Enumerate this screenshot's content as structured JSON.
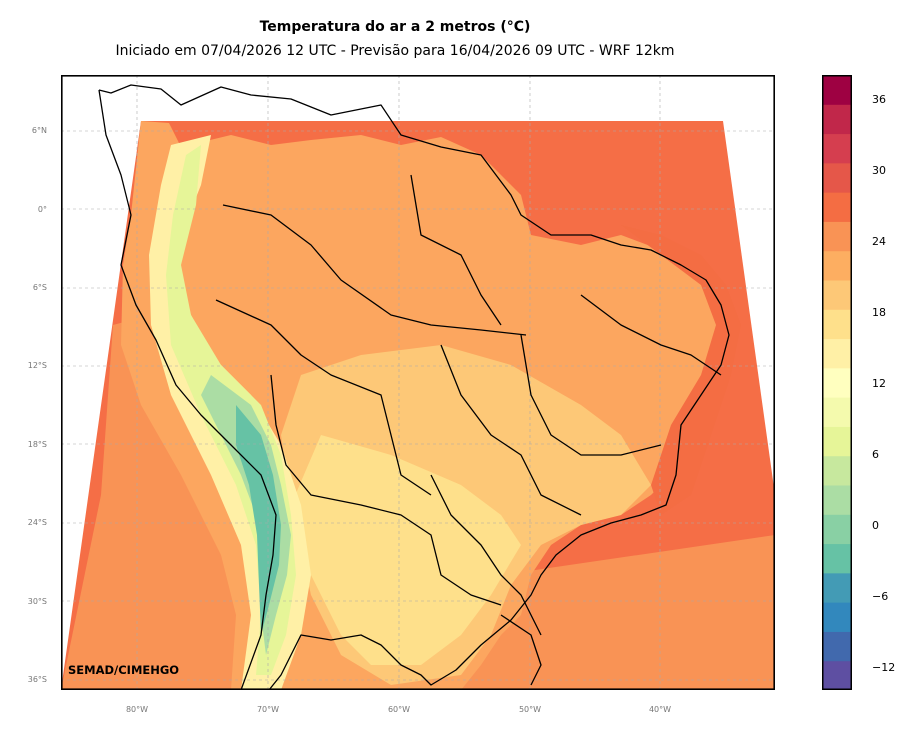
{
  "title": "Temperatura do ar a 2 metros (°C)",
  "subtitle": "Iniciado em 07/04/2026 12 UTC - Previsão para 16/04/2026 09 UTC - WRF 12km",
  "credit": "SEMAD/CIMEHGO",
  "lat_labels": [
    "6°N",
    "0°",
    "6°S",
    "12°S",
    "18°S",
    "24°S",
    "30°S",
    "36°S"
  ],
  "lon_labels": [
    "80°W",
    "70°W",
    "60°W",
    "50°W",
    "40°W"
  ],
  "colorbar": {
    "min": -14,
    "max": 38,
    "step": 2,
    "tick_labels": [
      "36",
      "30",
      "24",
      "18",
      "12",
      "6",
      "0",
      "−6",
      "−12"
    ],
    "colors": [
      "#5e4fa2",
      "#4169ad",
      "#3288bd",
      "#439bb5",
      "#66c2a5",
      "#89d0a4",
      "#abdda4",
      "#c7e89e",
      "#e6f598",
      "#f4faad",
      "#ffffbf",
      "#fff0a6",
      "#fee08b",
      "#fdc877",
      "#fdae61",
      "#f99355",
      "#f46d43",
      "#e55749",
      "#d53e4f",
      "#c1274a",
      "#9e0142"
    ]
  },
  "map": {
    "extent": {
      "lon": [
        -86,
        -31
      ],
      "lat": [
        -37,
        10
      ]
    },
    "ocean_color": "#f56e46",
    "land_color": "#fca65f",
    "no_data_color": "#ffffff"
  }
}
